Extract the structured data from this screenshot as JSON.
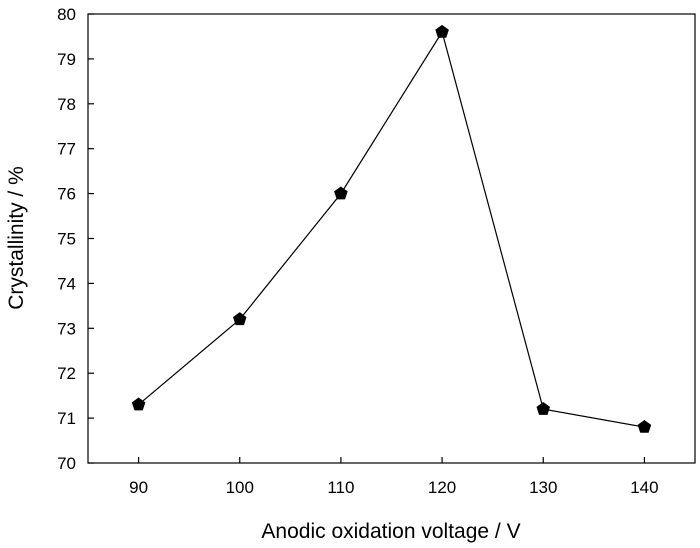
{
  "chart_data": {
    "type": "line",
    "title": "",
    "xlabel": "Anodic oxidation voltage / V",
    "ylabel": "Crystallinity / %",
    "x": [
      90,
      100,
      110,
      120,
      130,
      140
    ],
    "series": [
      {
        "values": [
          71.3,
          73.2,
          76.0,
          79.6,
          71.2,
          70.8
        ],
        "color": "#000000",
        "marker": "pentagon"
      }
    ],
    "xlim": [
      85,
      145
    ],
    "ylim": [
      70,
      80
    ],
    "xticks": [
      90,
      100,
      110,
      120,
      130,
      140
    ],
    "xtick_labels": [
      "90",
      "100",
      "110",
      "120",
      "130",
      "140"
    ],
    "yticks": [
      70,
      71,
      72,
      73,
      74,
      75,
      76,
      77,
      78,
      79,
      80
    ],
    "ytick_labels": [
      "70",
      "71",
      "72",
      "73",
      "74",
      "75",
      "76",
      "77",
      "78",
      "79",
      "80"
    ],
    "grid": false,
    "legend": "none"
  }
}
